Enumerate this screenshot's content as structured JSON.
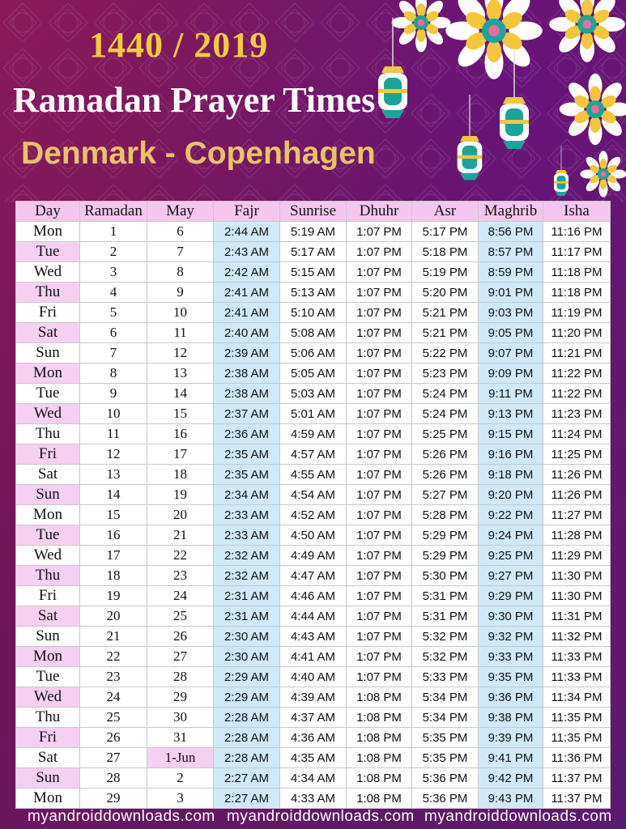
{
  "header": {
    "year": "1440 / 2019",
    "title": "Ramadan Prayer Times",
    "location": "Denmark - Copenhagen"
  },
  "watermark": {
    "text": "myandroiddownloads.com"
  },
  "colors": {
    "background": "#7a1860",
    "year_text": "#f2cb3d",
    "location_text": "#e9c268",
    "header_cell": "#f4c6ef",
    "highlight_column": "#cfe9f8"
  },
  "table": {
    "columns": [
      "Day",
      "Ramadan",
      "May",
      "Fajr",
      "Sunrise",
      "Dhuhr",
      "Asr",
      "Maghrib",
      "Isha"
    ],
    "rows": [
      [
        "Mon",
        "1",
        "6",
        "2:44 AM",
        "5:19 AM",
        "1:07 PM",
        "5:17 PM",
        "8:56 PM",
        "11:16 PM"
      ],
      [
        "Tue",
        "2",
        "7",
        "2:43 AM",
        "5:17 AM",
        "1:07 PM",
        "5:18 PM",
        "8:57 PM",
        "11:17 PM"
      ],
      [
        "Wed",
        "3",
        "8",
        "2:42 AM",
        "5:15 AM",
        "1:07 PM",
        "5:19 PM",
        "8:59 PM",
        "11:18 PM"
      ],
      [
        "Thu",
        "4",
        "9",
        "2:41 AM",
        "5:13 AM",
        "1:07 PM",
        "5:20 PM",
        "9:01 PM",
        "11:18 PM"
      ],
      [
        "Fri",
        "5",
        "10",
        "2:41 AM",
        "5:10 AM",
        "1:07 PM",
        "5:21 PM",
        "9:03 PM",
        "11:19 PM"
      ],
      [
        "Sat",
        "6",
        "11",
        "2:40 AM",
        "5:08 AM",
        "1:07 PM",
        "5:21 PM",
        "9:05 PM",
        "11:20 PM"
      ],
      [
        "Sun",
        "7",
        "12",
        "2:39 AM",
        "5:06 AM",
        "1:07 PM",
        "5:22 PM",
        "9:07 PM",
        "11:21 PM"
      ],
      [
        "Mon",
        "8",
        "13",
        "2:38 AM",
        "5:05 AM",
        "1:07 PM",
        "5:23 PM",
        "9:09 PM",
        "11:22 PM"
      ],
      [
        "Tue",
        "9",
        "14",
        "2:38 AM",
        "5:03 AM",
        "1:07 PM",
        "5:24 PM",
        "9:11 PM",
        "11:22 PM"
      ],
      [
        "Wed",
        "10",
        "15",
        "2:37 AM",
        "5:01 AM",
        "1:07 PM",
        "5:24 PM",
        "9:13 PM",
        "11:23 PM"
      ],
      [
        "Thu",
        "11",
        "16",
        "2:36 AM",
        "4:59 AM",
        "1:07 PM",
        "5:25 PM",
        "9:15 PM",
        "11:24 PM"
      ],
      [
        "Fri",
        "12",
        "17",
        "2:35 AM",
        "4:57 AM",
        "1:07 PM",
        "5:26 PM",
        "9:16 PM",
        "11:25 PM"
      ],
      [
        "Sat",
        "13",
        "18",
        "2:35 AM",
        "4:55 AM",
        "1:07 PM",
        "5:26 PM",
        "9:18 PM",
        "11:26 PM"
      ],
      [
        "Sun",
        "14",
        "19",
        "2:34 AM",
        "4:54 AM",
        "1:07 PM",
        "5:27 PM",
        "9:20 PM",
        "11:26 PM"
      ],
      [
        "Mon",
        "15",
        "20",
        "2:33 AM",
        "4:52 AM",
        "1:07 PM",
        "5:28 PM",
        "9:22 PM",
        "11:27 PM"
      ],
      [
        "Tue",
        "16",
        "21",
        "2:33 AM",
        "4:50 AM",
        "1:07 PM",
        "5:29 PM",
        "9:24 PM",
        "11:28 PM"
      ],
      [
        "Wed",
        "17",
        "22",
        "2:32 AM",
        "4:49 AM",
        "1:07 PM",
        "5:29 PM",
        "9:25 PM",
        "11:29 PM"
      ],
      [
        "Thu",
        "18",
        "23",
        "2:32 AM",
        "4:47 AM",
        "1:07 PM",
        "5:30 PM",
        "9:27 PM",
        "11:30 PM"
      ],
      [
        "Fri",
        "19",
        "24",
        "2:31 AM",
        "4:46 AM",
        "1:07 PM",
        "5:31 PM",
        "9:29 PM",
        "11:30 PM"
      ],
      [
        "Sat",
        "20",
        "25",
        "2:31 AM",
        "4:44 AM",
        "1:07 PM",
        "5:31 PM",
        "9:30 PM",
        "11:31 PM"
      ],
      [
        "Sun",
        "21",
        "26",
        "2:30 AM",
        "4:43 AM",
        "1:07 PM",
        "5:32 PM",
        "9:32 PM",
        "11:32 PM"
      ],
      [
        "Mon",
        "22",
        "27",
        "2:30 AM",
        "4:41 AM",
        "1:07 PM",
        "5:32 PM",
        "9:33 PM",
        "11:33 PM"
      ],
      [
        "Tue",
        "23",
        "28",
        "2:29 AM",
        "4:40 AM",
        "1:07 PM",
        "5:33 PM",
        "9:35 PM",
        "11:33 PM"
      ],
      [
        "Wed",
        "24",
        "29",
        "2:29 AM",
        "4:39 AM",
        "1:08 PM",
        "5:34 PM",
        "9:36 PM",
        "11:34 PM"
      ],
      [
        "Thu",
        "25",
        "30",
        "2:28 AM",
        "4:37 AM",
        "1:08 PM",
        "5:34 PM",
        "9:38 PM",
        "11:35 PM"
      ],
      [
        "Fri",
        "26",
        "31",
        "2:28 AM",
        "4:36 AM",
        "1:08 PM",
        "5:35 PM",
        "9:39 PM",
        "11:35 PM"
      ],
      [
        "Sat",
        "27",
        "1-Jun",
        "2:28 AM",
        "4:35 AM",
        "1:08 PM",
        "5:35 PM",
        "9:41 PM",
        "11:36 PM"
      ],
      [
        "Sun",
        "28",
        "2",
        "2:27 AM",
        "4:34 AM",
        "1:08 PM",
        "5:36 PM",
        "9:42 PM",
        "11:37 PM"
      ],
      [
        "Mon",
        "29",
        "3",
        "2:27 AM",
        "4:33 AM",
        "1:08 PM",
        "5:36 PM",
        "9:43 PM",
        "11:37 PM"
      ]
    ]
  }
}
